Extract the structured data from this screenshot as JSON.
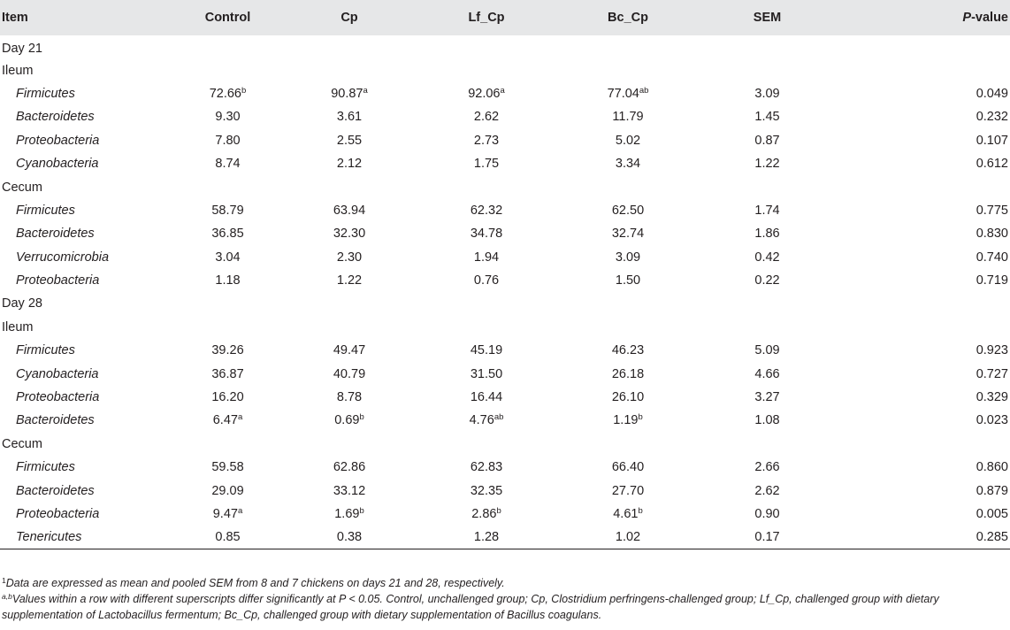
{
  "headers": {
    "item": "Item",
    "control": "Control",
    "cp": "Cp",
    "lf_cp": "Lf_Cp",
    "bc_cp": "Bc_Cp",
    "sem": "SEM",
    "p_italic": "P",
    "p_rest": "-value"
  },
  "sections": {
    "day21": "Day 21",
    "day28": "Day 28",
    "ileum": "Ileum",
    "cecum": "Cecum"
  },
  "rows": {
    "d21_ileum": [
      {
        "name": "Firmicutes",
        "control": "72.66",
        "control_sup": "b",
        "cp": "90.87",
        "cp_sup": "a",
        "lf": "92.06",
        "lf_sup": "a",
        "bc": "77.04",
        "bc_sup": "ab",
        "sem": "3.09",
        "p": "0.049"
      },
      {
        "name": "Bacteroidetes",
        "control": "9.30",
        "cp": "3.61",
        "lf": "2.62",
        "bc": "11.79",
        "sem": "1.45",
        "p": "0.232"
      },
      {
        "name": "Proteobacteria",
        "control": "7.80",
        "cp": "2.55",
        "lf": "2.73",
        "bc": "5.02",
        "sem": "0.87",
        "p": "0.107"
      },
      {
        "name": "Cyanobacteria",
        "control": "8.74",
        "cp": "2.12",
        "lf": "1.75",
        "bc": "3.34",
        "sem": "1.22",
        "p": "0.612"
      }
    ],
    "d21_cecum": [
      {
        "name": "Firmicutes",
        "control": "58.79",
        "cp": "63.94",
        "lf": "62.32",
        "bc": "62.50",
        "sem": "1.74",
        "p": "0.775"
      },
      {
        "name": "Bacteroidetes",
        "control": "36.85",
        "cp": "32.30",
        "lf": "34.78",
        "bc": "32.74",
        "sem": "1.86",
        "p": "0.830"
      },
      {
        "name": "Verrucomicrobia",
        "control": "3.04",
        "cp": "2.30",
        "lf": "1.94",
        "bc": "3.09",
        "sem": "0.42",
        "p": "0.740"
      },
      {
        "name": "Proteobacteria",
        "control": "1.18",
        "cp": "1.22",
        "lf": "0.76",
        "bc": "1.50",
        "sem": "0.22",
        "p": "0.719"
      }
    ],
    "d28_ileum": [
      {
        "name": "Firmicutes",
        "control": "39.26",
        "cp": "49.47",
        "lf": "45.19",
        "bc": "46.23",
        "sem": "5.09",
        "p": "0.923"
      },
      {
        "name": "Cyanobacteria",
        "control": "36.87",
        "cp": "40.79",
        "lf": "31.50",
        "bc": "26.18",
        "sem": "4.66",
        "p": "0.727"
      },
      {
        "name": "Proteobacteria",
        "control": "16.20",
        "cp": "8.78",
        "lf": "16.44",
        "bc": "26.10",
        "sem": "3.27",
        "p": "0.329"
      },
      {
        "name": "Bacteroidetes",
        "control": "6.47",
        "control_sup": "a",
        "cp": "0.69",
        "cp_sup": "b",
        "lf": "4.76",
        "lf_sup": "ab",
        "bc": "1.19",
        "bc_sup": "b",
        "sem": "1.08",
        "p": "0.023"
      }
    ],
    "d28_cecum": [
      {
        "name": "Firmicutes",
        "control": "59.58",
        "cp": "62.86",
        "lf": "62.83",
        "bc": "66.40",
        "sem": "2.66",
        "p": "0.860"
      },
      {
        "name": "Bacteroidetes",
        "control": "29.09",
        "cp": "33.12",
        "lf": "32.35",
        "bc": "27.70",
        "sem": "2.62",
        "p": "0.879"
      },
      {
        "name": "Proteobacteria",
        "control": "9.47",
        "control_sup": "a",
        "cp": "1.69",
        "cp_sup": "b",
        "lf": "2.86",
        "lf_sup": "b",
        "bc": "4.61",
        "bc_sup": "b",
        "sem": "0.90",
        "p": "0.005"
      },
      {
        "name": "Tenericutes",
        "control": "0.85",
        "cp": "0.38",
        "lf": "1.28",
        "bc": "1.02",
        "sem": "0.17",
        "p": "0.285"
      }
    ]
  },
  "footnotes": {
    "note1_mark": "1",
    "note1": "Data are expressed as mean and pooled SEM from 8 and 7 chickens on days 21 and 28, respectively.",
    "note2_mark": "a,b",
    "note2": "Values within a row with different superscripts differ significantly at P < 0.05. Control, unchallenged group; Cp, Clostridium perfringens-challenged group; Lf_Cp, challenged group with dietary supplementation of Lactobacillus fermentum; Bc_Cp, challenged group with dietary supplementation of Bacillus coagulans."
  }
}
